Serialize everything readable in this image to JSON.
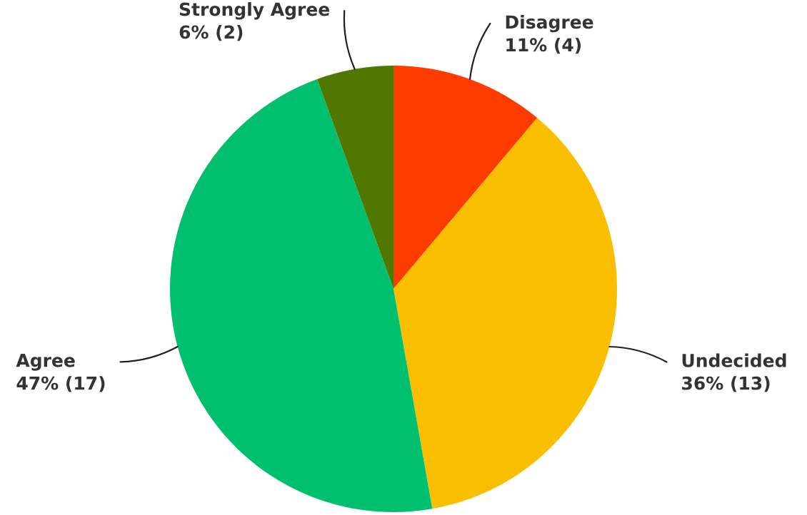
{
  "chart_data": {
    "type": "pie",
    "categories": [
      "Disagree",
      "Undecided",
      "Agree",
      "Strongly Agree"
    ],
    "values": [
      4,
      13,
      17,
      2
    ],
    "colors": [
      "#ff3c00",
      "#f9be00",
      "#00bf6f",
      "#507800"
    ],
    "value_labels": [
      "11% (4)",
      "36% (13)",
      "47% (17)",
      "6% (2)"
    ]
  }
}
